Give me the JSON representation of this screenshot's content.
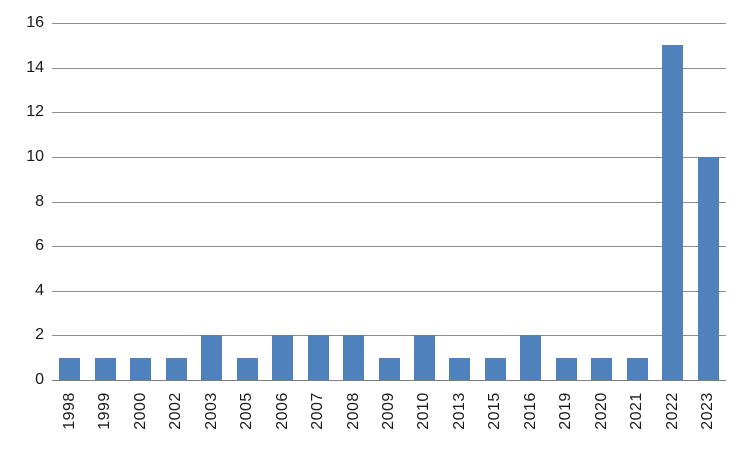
{
  "chart_data": {
    "type": "bar",
    "title": "",
    "xlabel": "",
    "ylabel": "",
    "categories": [
      "1998",
      "1999",
      "2000",
      "2002",
      "2003",
      "2005",
      "2006",
      "2007",
      "2008",
      "2009",
      "2010",
      "2013",
      "2015",
      "2016",
      "2019",
      "2020",
      "2021",
      "2022",
      "2023"
    ],
    "values": [
      1,
      1,
      1,
      1,
      2,
      1,
      2,
      2,
      2,
      1,
      2,
      1,
      1,
      2,
      1,
      1,
      1,
      15,
      10
    ],
    "ylim": [
      0,
      16
    ],
    "yticks": [
      0,
      2,
      4,
      6,
      8,
      10,
      12,
      14,
      16
    ],
    "grid": true,
    "legend": false,
    "bar_color": "#4F81BD",
    "gridline_color": "#8C8C8C",
    "axis_line_color": "#7F7F7F",
    "label_color": "#1A1A1A",
    "background": "#FFFFFF"
  }
}
